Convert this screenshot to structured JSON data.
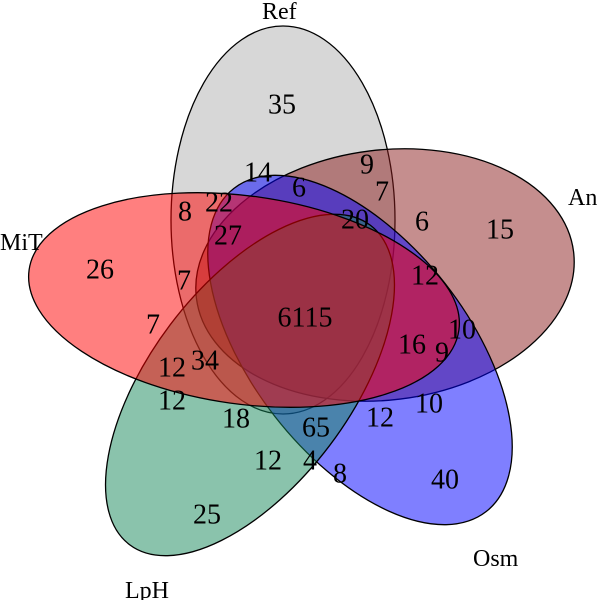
{
  "diagram": {
    "sets": [
      {
        "name": "Ref",
        "color": "#b0b0b0"
      },
      {
        "name": "An",
        "color": "#8b1e1e"
      },
      {
        "name": "Osm",
        "color": "#0000ff"
      },
      {
        "name": "LpH",
        "color": "#15885a"
      },
      {
        "name": "MiT",
        "color": "#ff0000"
      }
    ],
    "regions": [
      {
        "id": "ref_only",
        "value": "35"
      },
      {
        "id": "an_only",
        "value": "15"
      },
      {
        "id": "osm_only",
        "value": "40"
      },
      {
        "id": "lph_only",
        "value": "25"
      },
      {
        "id": "mit_only",
        "value": "26"
      },
      {
        "id": "r_14",
        "value": "14"
      },
      {
        "id": "r_9a",
        "value": "9"
      },
      {
        "id": "r_7a",
        "value": "7"
      },
      {
        "id": "r_6a",
        "value": "6"
      },
      {
        "id": "r_6b",
        "value": "6"
      },
      {
        "id": "r_20",
        "value": "20"
      },
      {
        "id": "r_8a",
        "value": "8"
      },
      {
        "id": "r_22",
        "value": "22"
      },
      {
        "id": "r_27",
        "value": "27"
      },
      {
        "id": "r_7b",
        "value": "7"
      },
      {
        "id": "r_7c",
        "value": "7"
      },
      {
        "id": "r_6115",
        "value": "6115"
      },
      {
        "id": "r_12a",
        "value": "12"
      },
      {
        "id": "r_10a",
        "value": "10"
      },
      {
        "id": "r_16",
        "value": "16"
      },
      {
        "id": "r_9b",
        "value": "9"
      },
      {
        "id": "r_10b",
        "value": "10"
      },
      {
        "id": "r_34",
        "value": "34"
      },
      {
        "id": "r_12b",
        "value": "12"
      },
      {
        "id": "r_12c",
        "value": "12"
      },
      {
        "id": "r_18",
        "value": "18"
      },
      {
        "id": "r_65",
        "value": "65"
      },
      {
        "id": "r_12d",
        "value": "12"
      },
      {
        "id": "r_12e",
        "value": "12"
      },
      {
        "id": "r_4",
        "value": "4"
      },
      {
        "id": "r_8b",
        "value": "8"
      }
    ]
  }
}
